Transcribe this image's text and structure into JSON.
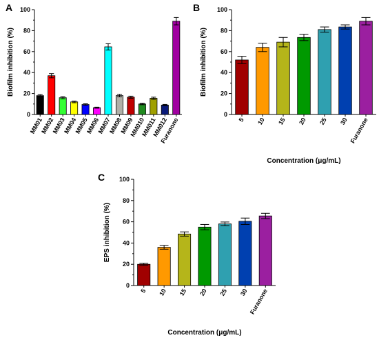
{
  "chart_data": [
    {
      "panel": "A",
      "type": "bar",
      "categories": [
        "MM01",
        "MM02",
        "MM03",
        "MM04",
        "MM05",
        "MM06",
        "MM07",
        "MM08",
        "MM09",
        "MM010",
        "MM011",
        "MM012",
        "Furanone"
      ],
      "values": [
        18,
        37,
        16,
        12,
        9.5,
        6.5,
        64.5,
        18,
        16.5,
        10,
        15.5,
        9,
        89
      ],
      "errors": [
        1.0,
        2.0,
        1.0,
        0.8,
        0.7,
        0.5,
        3.0,
        1.2,
        1.0,
        0.7,
        1.0,
        0.6,
        3.5
      ],
      "colors": [
        "#000000",
        "#ff0000",
        "#33ff33",
        "#ffff00",
        "#0000ff",
        "#ff00ff",
        "#00ffff",
        "#b0b0a8",
        "#c00000",
        "#1f8a1f",
        "#a0a000",
        "#0a1a7a",
        "#a000a0"
      ],
      "xlabel": "",
      "ylabel": "Biofilm inhibition (%)",
      "ylim": [
        0,
        100
      ],
      "yticks": [
        "0",
        "20",
        "40",
        "60",
        "80",
        "100"
      ],
      "grid": false
    },
    {
      "panel": "B",
      "type": "bar",
      "categories": [
        "5",
        "10",
        "15",
        "20",
        "25",
        "30",
        "Furanone"
      ],
      "values": [
        52,
        64,
        69,
        73.5,
        81,
        83.5,
        89
      ],
      "errors": [
        3.5,
        4.0,
        4.5,
        3.0,
        2.5,
        2.0,
        3.5
      ],
      "colors": [
        "#a00000",
        "#ff9900",
        "#b5b51a",
        "#009900",
        "#2fa0b0",
        "#0040b0",
        "#9b1fa0"
      ],
      "xlabel": "Concentration (μg/mL)",
      "ylabel": "Biofilm inhibition (%)",
      "ylim": [
        0,
        100
      ],
      "yticks": [
        "0",
        "20",
        "40",
        "60",
        "80",
        "100"
      ],
      "grid": false
    },
    {
      "panel": "C",
      "type": "bar",
      "categories": [
        "5",
        "10",
        "15",
        "20",
        "25",
        "30",
        "Furanone"
      ],
      "values": [
        20,
        36,
        48.5,
        55,
        58,
        60.5,
        65.5
      ],
      "errors": [
        1.0,
        1.8,
        2.0,
        2.5,
        1.8,
        3.0,
        2.5
      ],
      "colors": [
        "#a00000",
        "#ff9900",
        "#b5b51a",
        "#009900",
        "#2fa0b0",
        "#0040b0",
        "#9b1fa0"
      ],
      "xlabel": "Concentration (μg/mL)",
      "ylabel": "EPS inhibition (%)",
      "ylim": [
        0,
        100
      ],
      "yticks": [
        "0",
        "20",
        "40",
        "60",
        "80",
        "100"
      ],
      "grid": false
    }
  ]
}
